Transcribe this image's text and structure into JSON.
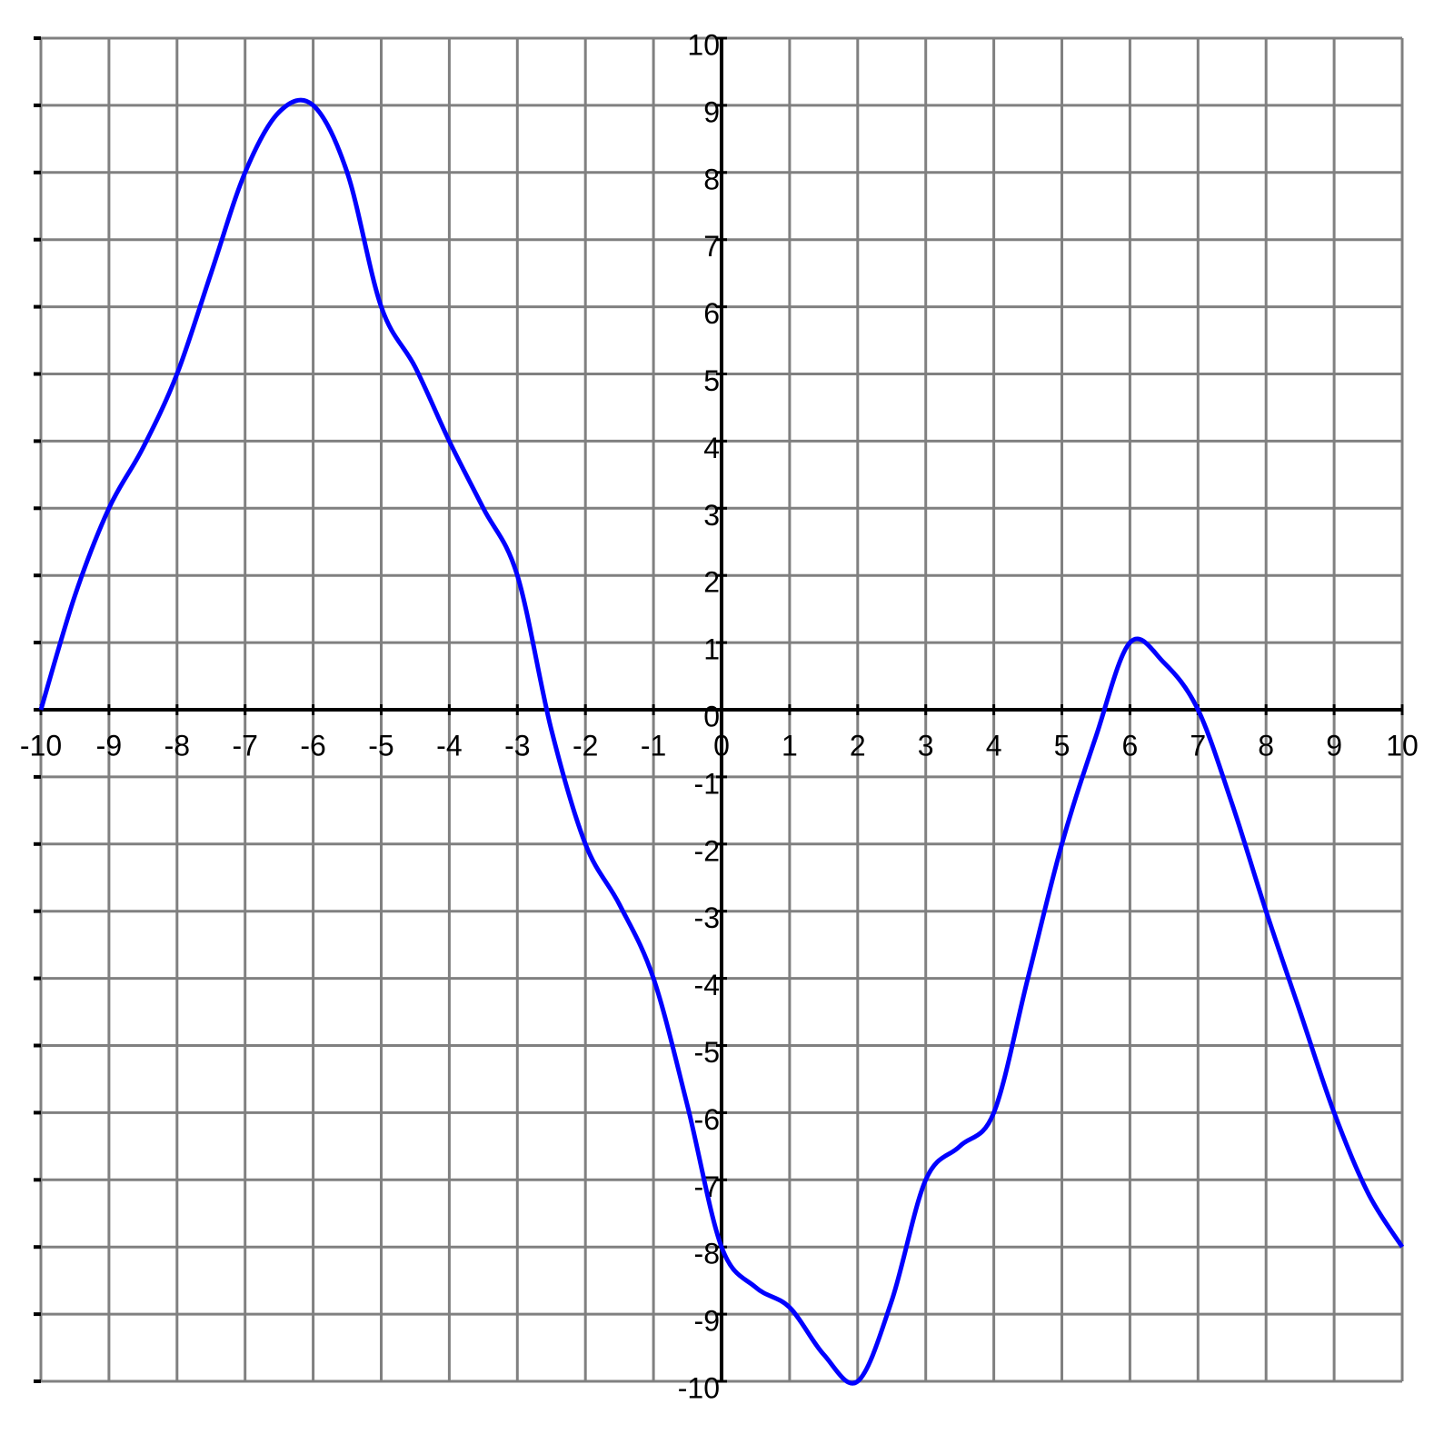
{
  "chart_data": {
    "type": "line",
    "x": [
      -10,
      -9.5,
      -9,
      -8.5,
      -8,
      -7.5,
      -7,
      -6.5,
      -6,
      -5.5,
      -5,
      -4.5,
      -4,
      -3.5,
      -3,
      -2.5,
      -2,
      -1.5,
      -1,
      -0.5,
      0,
      0.5,
      1,
      1.5,
      2,
      2.5,
      3,
      3.5,
      4,
      4.5,
      5,
      5.5,
      6,
      6.5,
      7,
      7.5,
      8,
      8.5,
      9,
      9.5,
      10
    ],
    "series": [
      {
        "color": "#0000ff",
        "values": [
          0,
          1.7,
          3,
          3.9,
          5,
          6.5,
          8,
          8.9,
          9,
          8,
          6,
          5.1,
          4,
          3,
          2,
          -0.3,
          -2,
          -2.9,
          -4,
          -5.9,
          -8,
          -8.6,
          -8.9,
          -9.6,
          -10,
          -8.8,
          -7,
          -6.5,
          -6,
          -4,
          -2,
          -0.4,
          1,
          0.7,
          0,
          -1.4,
          -3,
          -4.5,
          -6,
          -7.2,
          -8
        ]
      }
    ],
    "xlim": [
      -10,
      10
    ],
    "ylim": [
      -10,
      10
    ],
    "xticks": [
      -10,
      -9,
      -8,
      -7,
      -6,
      -5,
      -4,
      -3,
      -2,
      -1,
      0,
      1,
      2,
      3,
      4,
      5,
      6,
      7,
      8,
      9,
      10
    ],
    "yticks": [
      -10,
      -9,
      -8,
      -7,
      -6,
      -5,
      -4,
      -3,
      -2,
      -1,
      0,
      1,
      2,
      3,
      4,
      5,
      6,
      7,
      8,
      9,
      10
    ],
    "grid": true
  }
}
